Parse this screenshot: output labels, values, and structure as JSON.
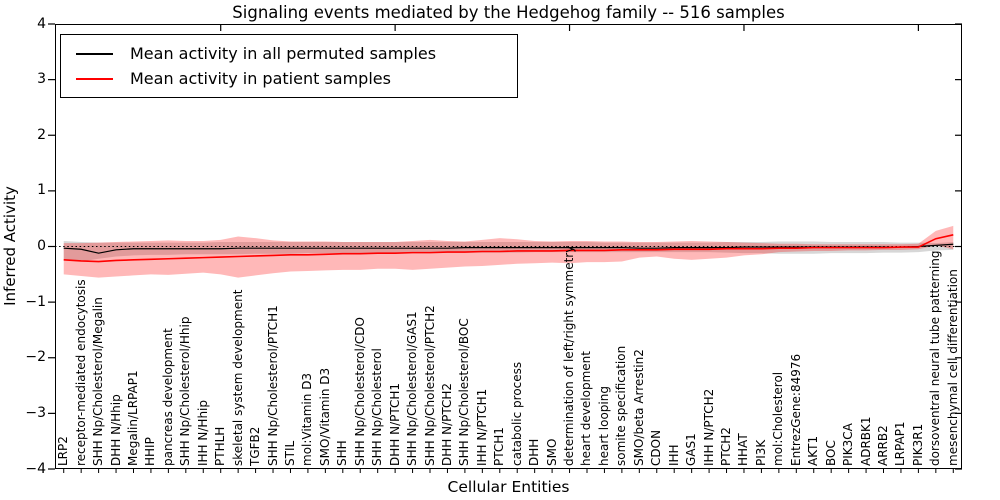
{
  "figure": {
    "title": "Signaling events mediated by the Hedgehog family -- 516 samples",
    "xlabel": "Cellular Entities",
    "ylabel": "Inferred Activity"
  },
  "legend": {
    "entries": [
      {
        "label": "Mean activity in all permuted samples",
        "color": "#000000"
      },
      {
        "label": "Mean activity in patient samples",
        "color": "#ff0000"
      }
    ]
  },
  "chart_data": {
    "type": "line",
    "title": "Signaling events mediated by the Hedgehog family -- 516 samples",
    "xlabel": "Cellular Entities",
    "ylabel": "Inferred Activity",
    "ylim": [
      -4,
      4
    ],
    "yticks": [
      4,
      3,
      2,
      1,
      0,
      -1,
      -2,
      -3,
      -4
    ],
    "top_axis_ticks": [
      10,
      20,
      30,
      40,
      50
    ],
    "grid": false,
    "legend_position": "upper left",
    "zero_reference_line": 0,
    "categories": [
      "LRP2",
      "receptor-mediated endocytosis",
      "SHH Np/Cholesterol/Megalin",
      "DHH N/Hhip",
      "Megalin/LRPAP1",
      "HHIP",
      "pancreas development",
      "SHH Np/Cholesterol/Hhip",
      "IHH N/Hhip",
      "PTHLH",
      "skeletal system development",
      "TGFB2",
      "SHH Np/Cholesterol/PTCH1",
      "STIL",
      "mol:Vitamin D3",
      "SMO/Vitamin D3",
      "SHH",
      "SHH Np/Cholesterol/CDO",
      "SHH Np/Cholesterol",
      "DHH N/PTCH1",
      "SHH Np/Cholesterol/GAS1",
      "SHH Np/Cholesterol/PTCH2",
      "DHH N/PTCH2",
      "SHH Np/Cholesterol/BOC",
      "IHH N/PTCH1",
      "PTCH1",
      "catabolic process",
      "DHH",
      "SMO",
      "determination of left/right symmetry",
      "heart development",
      "heart looping",
      "somite specification",
      "SMO/beta Arrestin2",
      "CDON",
      "IHH",
      "GAS1",
      "IHH N/PTCH2",
      "PTCH2",
      "HHAT",
      "PI3K",
      "mol:Cholesterol",
      "EntrezGene:84976",
      "AKT1",
      "BOC",
      "PIK3CA",
      "ADRBK1",
      "ARRB2",
      "LRPAP1",
      "PIK3R1",
      "dorsoventral neural tube patterning",
      "mesenchymal cell differentiation"
    ],
    "series": [
      {
        "id": "permuted-mean-line",
        "name": "Mean activity in all permuted samples",
        "color": "#000000",
        "width": 1.2,
        "values": [
          -0.03,
          -0.05,
          -0.12,
          -0.06,
          -0.04,
          -0.04,
          -0.04,
          -0.04,
          -0.04,
          -0.04,
          -0.03,
          -0.03,
          -0.03,
          -0.03,
          -0.03,
          -0.03,
          -0.03,
          -0.03,
          -0.03,
          -0.03,
          -0.03,
          -0.03,
          -0.03,
          -0.02,
          -0.02,
          -0.02,
          -0.02,
          -0.02,
          -0.02,
          -0.02,
          -0.02,
          -0.02,
          -0.02,
          -0.03,
          -0.03,
          -0.02,
          -0.02,
          -0.02,
          -0.02,
          -0.01,
          -0.01,
          -0.01,
          -0.01,
          -0.01,
          -0.01,
          -0.01,
          -0.01,
          -0.01,
          -0.01,
          0.0,
          0.02,
          0.04
        ]
      },
      {
        "id": "patient-mean-line",
        "name": "Mean activity in patient samples",
        "color": "#ff0000",
        "width": 1.6,
        "values": [
          -0.24,
          -0.26,
          -0.27,
          -0.25,
          -0.24,
          -0.23,
          -0.22,
          -0.21,
          -0.2,
          -0.19,
          -0.18,
          -0.17,
          -0.16,
          -0.15,
          -0.15,
          -0.14,
          -0.13,
          -0.13,
          -0.12,
          -0.12,
          -0.11,
          -0.11,
          -0.1,
          -0.1,
          -0.09,
          -0.09,
          -0.08,
          -0.08,
          -0.08,
          -0.07,
          -0.07,
          -0.07,
          -0.06,
          -0.06,
          -0.06,
          -0.05,
          -0.05,
          -0.05,
          -0.04,
          -0.04,
          -0.04,
          -0.03,
          -0.03,
          -0.02,
          -0.02,
          -0.02,
          -0.02,
          -0.02,
          -0.01,
          -0.01,
          0.14,
          0.21
        ]
      }
    ],
    "bands": [
      {
        "id": "permuted-std-band",
        "name": "Permuted samples std band",
        "color": "rgba(130,130,130,0.32)",
        "hi": [
          0.1,
          0.08,
          0.07,
          0.07,
          0.07,
          0.07,
          0.07,
          0.07,
          0.07,
          0.08,
          0.08,
          0.08,
          0.08,
          0.08,
          0.08,
          0.08,
          0.08,
          0.08,
          0.08,
          0.08,
          0.08,
          0.08,
          0.08,
          0.08,
          0.08,
          0.08,
          0.08,
          0.08,
          0.08,
          0.08,
          0.08,
          0.07,
          0.07,
          0.07,
          0.07,
          0.07,
          0.07,
          0.07,
          0.08,
          0.08,
          0.08,
          0.09,
          0.09,
          0.09,
          0.08,
          0.08,
          0.08,
          0.08,
          0.07,
          0.07,
          0.06,
          0.08
        ],
        "lo": [
          -0.25,
          -0.27,
          -0.22,
          -0.18,
          -0.16,
          -0.15,
          -0.15,
          -0.14,
          -0.14,
          -0.14,
          -0.14,
          -0.13,
          -0.13,
          -0.13,
          -0.12,
          -0.12,
          -0.12,
          -0.12,
          -0.12,
          -0.12,
          -0.11,
          -0.11,
          -0.11,
          -0.11,
          -0.11,
          -0.11,
          -0.11,
          -0.1,
          -0.1,
          -0.1,
          -0.1,
          -0.1,
          -0.1,
          -0.1,
          -0.1,
          -0.1,
          -0.1,
          -0.1,
          -0.11,
          -0.12,
          -0.12,
          -0.13,
          -0.13,
          -0.13,
          -0.12,
          -0.12,
          -0.12,
          -0.11,
          -0.11,
          -0.1,
          -0.07,
          -0.06
        ]
      },
      {
        "id": "patient-std-band",
        "name": "Patient samples std band",
        "color": "rgba(255,0,0,0.28)",
        "hi": [
          0.06,
          0.06,
          0.07,
          0.08,
          0.09,
          0.1,
          0.11,
          0.1,
          0.1,
          0.12,
          0.18,
          0.15,
          0.11,
          0.09,
          0.09,
          0.09,
          0.08,
          0.08,
          0.08,
          0.08,
          0.1,
          0.12,
          0.1,
          0.09,
          0.12,
          0.15,
          0.13,
          0.1,
          0.09,
          0.1,
          0.1,
          0.09,
          0.09,
          0.08,
          0.08,
          0.09,
          0.1,
          0.09,
          0.08,
          0.07,
          0.06,
          0.05,
          0.05,
          0.04,
          0.04,
          0.04,
          0.04,
          0.04,
          0.04,
          0.05,
          0.28,
          0.37
        ],
        "lo": [
          -0.5,
          -0.53,
          -0.56,
          -0.54,
          -0.52,
          -0.5,
          -0.51,
          -0.49,
          -0.47,
          -0.5,
          -0.56,
          -0.52,
          -0.48,
          -0.45,
          -0.44,
          -0.43,
          -0.42,
          -0.42,
          -0.4,
          -0.4,
          -0.42,
          -0.4,
          -0.38,
          -0.36,
          -0.35,
          -0.33,
          -0.31,
          -0.3,
          -0.29,
          -0.3,
          -0.28,
          -0.28,
          -0.27,
          -0.2,
          -0.18,
          -0.22,
          -0.24,
          -0.22,
          -0.2,
          -0.16,
          -0.14,
          -0.1,
          -0.09,
          -0.08,
          -0.08,
          -0.07,
          -0.07,
          -0.06,
          -0.06,
          -0.05,
          0.02,
          -0.05
        ]
      }
    ]
  }
}
